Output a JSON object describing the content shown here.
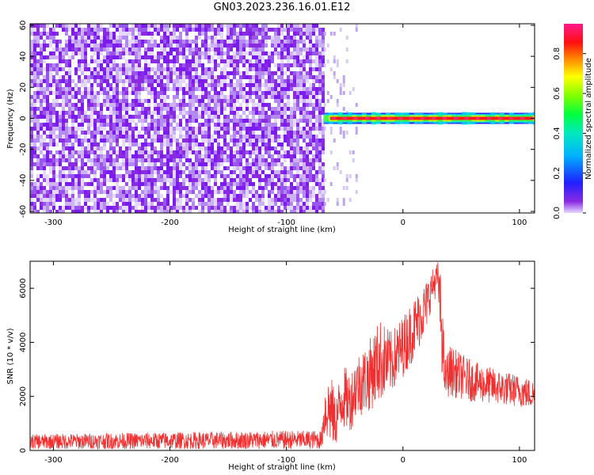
{
  "figure_title": "GN03.2023.236.16.01.E12",
  "colors": {
    "spectrogram_purple": "#7b1bf0",
    "spectrogram_light": "#d8c8f8",
    "snr_line": "#f03030",
    "axis": "#000000"
  },
  "colorbar": {
    "label": "Normalized spectral amplitude",
    "ticks": [
      "0.0",
      "0.2",
      "0.4",
      "0.6",
      "0.8"
    ],
    "tick_values": [
      0.0,
      0.2,
      0.4,
      0.6,
      0.8
    ],
    "range": [
      0,
      0.95
    ],
    "colormap": "rainbow (purple → blue → cyan → green → yellow → red → pink)"
  },
  "chart_data": [
    {
      "type": "heatmap",
      "title": "GN03.2023.236.16.01.E12",
      "xlabel": "Height of straight line (km)",
      "ylabel": "Frequency (Hz)",
      "xlim": [
        -320,
        113
      ],
      "ylim": [
        -61,
        61
      ],
      "x_ticks": [
        -300,
        -200,
        -100,
        0,
        100
      ],
      "y_ticks": [
        -60,
        -40,
        -20,
        0,
        20,
        40,
        60
      ],
      "grid": false,
      "regions": [
        {
          "x_range": [
            -320,
            -68
          ],
          "description": "broadband noise, low amplitude (~0.05–0.1) across all frequencies"
        },
        {
          "x_range": [
            -68,
            -40
          ],
          "description": "sparse weak streaks"
        },
        {
          "x_range": [
            -68,
            113
          ],
          "y_center": 0,
          "description": "narrowband signal near 0 Hz, amplitude ~0.6–0.95"
        }
      ]
    },
    {
      "type": "line",
      "xlabel": "Height of straight line (km)",
      "ylabel": "SNR (10 * v/v)",
      "xlim": [
        -320,
        113
      ],
      "ylim": [
        0,
        7000
      ],
      "x_ticks": [
        -300,
        -200,
        -100,
        0,
        100
      ],
      "y_ticks": [
        0,
        2000,
        4000,
        6000
      ],
      "grid": false,
      "series": [
        {
          "color": "#f03030",
          "x": [
            -320,
            -250,
            -150,
            -70,
            -67,
            -62,
            -58,
            -52,
            -45,
            -40,
            -30,
            -20,
            -10,
            0,
            10,
            20,
            25,
            30,
            33,
            36,
            40,
            50,
            60,
            80,
            100,
            113
          ],
          "y": [
            300,
            300,
            320,
            350,
            1700,
            2100,
            1200,
            2300,
            1900,
            2700,
            2900,
            3200,
            3500,
            4000,
            4700,
            5600,
            6200,
            6600,
            5500,
            2500,
            2800,
            2700,
            2500,
            2300,
            2100,
            2000
          ],
          "spread_low": [
            50,
            50,
            50,
            50,
            400,
            200,
            100,
            800,
            700,
            1200,
            1400,
            1800,
            2100,
            2700,
            3400,
            4400,
            5400,
            5800,
            3000,
            1900,
            2000,
            1900,
            1800,
            1700,
            1600,
            1500
          ],
          "spread_high": [
            600,
            650,
            700,
            750,
            2500,
            2900,
            2000,
            3200,
            2900,
            3600,
            4000,
            4900,
            4400,
            5000,
            5700,
            6300,
            6700,
            7000,
            6400,
            3400,
            3900,
            3600,
            3300,
            3000,
            2800,
            2600
          ]
        }
      ]
    }
  ]
}
